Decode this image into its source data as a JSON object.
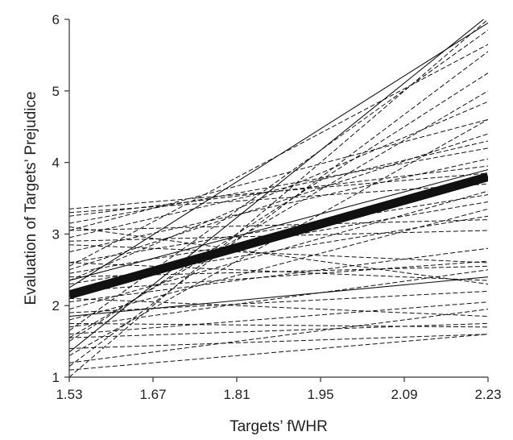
{
  "chart_data": {
    "type": "line",
    "title": "",
    "xlabel": "Targets’ fWHR",
    "ylabel": "Evaluation of Targets’ Prejudice",
    "xlim": [
      1.53,
      2.23
    ],
    "ylim": [
      1,
      6
    ],
    "x_ticks": [
      "1.53",
      "1.67",
      "1.81",
      "1.95",
      "2.09",
      "2.23"
    ],
    "y_ticks": [
      "1",
      "2",
      "3",
      "4",
      "5",
      "6"
    ],
    "grid": false,
    "legend": "none",
    "series": [
      {
        "style": "bold",
        "values": [
          [
            1.53,
            2.15
          ],
          [
            2.23,
            3.8
          ]
        ]
      },
      {
        "style": "solid",
        "values": [
          [
            1.53,
            2.25
          ],
          [
            2.23,
            5.95
          ]
        ]
      },
      {
        "style": "solid",
        "values": [
          [
            1.53,
            1.35
          ],
          [
            2.23,
            6.05
          ]
        ]
      },
      {
        "style": "solid",
        "values": [
          [
            1.53,
            2.35
          ],
          [
            2.23,
            3.9
          ]
        ]
      },
      {
        "style": "solid",
        "values": [
          [
            1.53,
            1.85
          ],
          [
            2.23,
            2.4
          ]
        ]
      },
      {
        "style": "dashed",
        "values": [
          [
            1.53,
            1.0
          ],
          [
            2.23,
            6.0
          ]
        ]
      },
      {
        "style": "dashed",
        "values": [
          [
            1.53,
            1.15
          ],
          [
            2.23,
            5.55
          ]
        ]
      },
      {
        "style": "dashed",
        "values": [
          [
            1.53,
            1.65
          ],
          [
            2.23,
            5.85
          ]
        ]
      },
      {
        "style": "dashed",
        "values": [
          [
            1.53,
            1.5
          ],
          [
            2.23,
            5.25
          ]
        ]
      },
      {
        "style": "dashed",
        "values": [
          [
            1.53,
            2.55
          ],
          [
            2.23,
            5.65
          ]
        ]
      },
      {
        "style": "dashed",
        "values": [
          [
            1.53,
            2.35
          ],
          [
            2.23,
            4.85
          ]
        ]
      },
      {
        "style": "dashed",
        "values": [
          [
            1.53,
            1.55
          ],
          [
            2.23,
            5.0
          ]
        ]
      },
      {
        "style": "dashed",
        "values": [
          [
            1.53,
            3.05
          ],
          [
            2.23,
            4.6
          ]
        ]
      },
      {
        "style": "dashed",
        "values": [
          [
            1.53,
            2.95
          ],
          [
            2.23,
            4.3
          ]
        ]
      },
      {
        "style": "dashed",
        "values": [
          [
            1.53,
            3.15
          ],
          [
            2.23,
            4.2
          ]
        ]
      },
      {
        "style": "dashed",
        "values": [
          [
            1.53,
            3.25
          ],
          [
            2.23,
            3.95
          ]
        ]
      },
      {
        "style": "dashed",
        "values": [
          [
            1.53,
            3.35
          ],
          [
            2.23,
            3.85
          ]
        ]
      },
      {
        "style": "dashed",
        "values": [
          [
            1.53,
            3.3
          ],
          [
            2.23,
            3.7
          ]
        ]
      },
      {
        "style": "dashed",
        "values": [
          [
            1.53,
            2.75
          ],
          [
            2.23,
            4.05
          ]
        ]
      },
      {
        "style": "dashed",
        "values": [
          [
            1.53,
            2.6
          ],
          [
            2.23,
            3.55
          ]
        ]
      },
      {
        "style": "dashed",
        "values": [
          [
            1.53,
            3.05
          ],
          [
            2.23,
            3.2
          ]
        ]
      },
      {
        "style": "dashed",
        "values": [
          [
            1.53,
            2.9
          ],
          [
            2.23,
            3.05
          ]
        ]
      },
      {
        "style": "dashed",
        "values": [
          [
            1.53,
            2.45
          ],
          [
            2.23,
            3.45
          ]
        ]
      },
      {
        "style": "dashed",
        "values": [
          [
            1.53,
            2.3
          ],
          [
            2.23,
            3.25
          ]
        ]
      },
      {
        "style": "dashed",
        "values": [
          [
            1.53,
            1.95
          ],
          [
            2.23,
            3.6
          ]
        ]
      },
      {
        "style": "dashed",
        "values": [
          [
            1.53,
            1.8
          ],
          [
            2.23,
            3.35
          ]
        ]
      },
      {
        "style": "dashed",
        "values": [
          [
            1.53,
            2.05
          ],
          [
            2.23,
            2.8
          ]
        ]
      },
      {
        "style": "dashed",
        "values": [
          [
            1.53,
            2.2
          ],
          [
            2.23,
            2.62
          ]
        ]
      },
      {
        "style": "dashed",
        "values": [
          [
            1.53,
            2.4
          ],
          [
            2.23,
            2.55
          ]
        ]
      },
      {
        "style": "dashed",
        "values": [
          [
            1.53,
            1.7
          ],
          [
            2.23,
            2.5
          ]
        ]
      },
      {
        "style": "dashed",
        "values": [
          [
            1.53,
            2.6
          ],
          [
            2.23,
            2.35
          ]
        ]
      },
      {
        "style": "dashed",
        "values": [
          [
            1.53,
            1.9
          ],
          [
            2.23,
            2.2
          ]
        ]
      },
      {
        "style": "dashed",
        "values": [
          [
            1.53,
            1.6
          ],
          [
            2.23,
            2.05
          ]
        ]
      },
      {
        "style": "dashed",
        "values": [
          [
            1.53,
            2.1
          ],
          [
            2.23,
            1.85
          ]
        ]
      },
      {
        "style": "dashed",
        "values": [
          [
            1.53,
            1.55
          ],
          [
            2.23,
            1.75
          ]
        ]
      },
      {
        "style": "dashed",
        "values": [
          [
            1.53,
            1.75
          ],
          [
            2.23,
            1.7
          ]
        ]
      },
      {
        "style": "dashed",
        "values": [
          [
            1.53,
            1.4
          ],
          [
            2.23,
            1.6
          ]
        ]
      },
      {
        "style": "dashed",
        "values": [
          [
            1.53,
            1.2
          ],
          [
            2.23,
            1.95
          ]
        ]
      },
      {
        "style": "dashed",
        "values": [
          [
            1.53,
            1.1
          ],
          [
            2.23,
            1.6
          ]
        ]
      },
      {
        "style": "dashed",
        "values": [
          [
            1.53,
            3.1
          ],
          [
            2.23,
            2.3
          ]
        ]
      },
      {
        "style": "dashed",
        "values": [
          [
            1.53,
            2.85
          ],
          [
            2.23,
            2.6
          ]
        ]
      },
      {
        "style": "dashed",
        "values": [
          [
            1.53,
            1.3
          ],
          [
            2.23,
            4.6
          ]
        ]
      },
      {
        "style": "dashed",
        "values": [
          [
            1.53,
            2.5
          ],
          [
            2.23,
            4.4
          ]
        ]
      }
    ]
  }
}
